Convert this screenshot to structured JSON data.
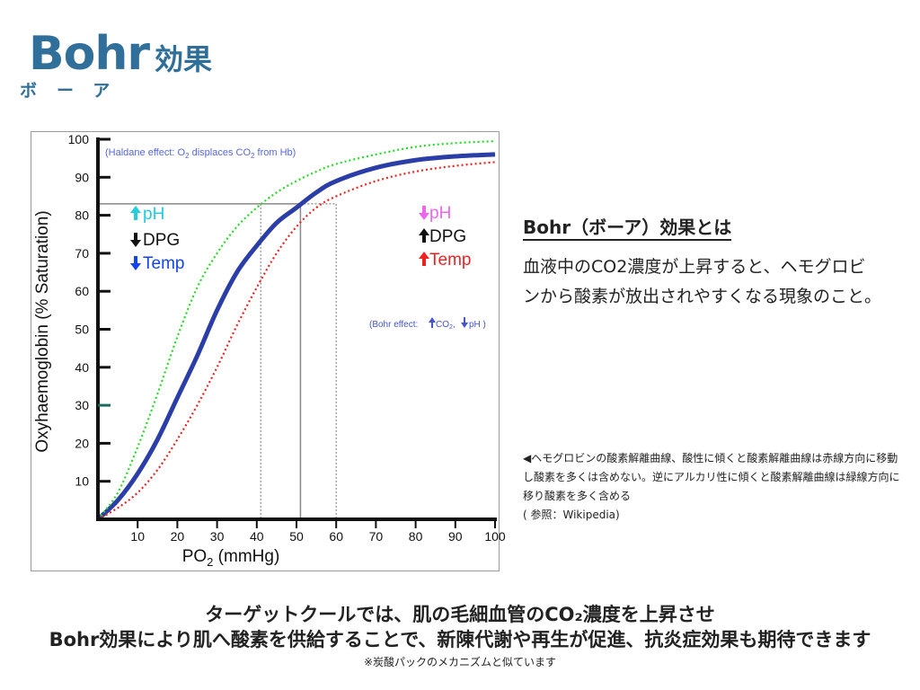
{
  "slide": {
    "title_en": "Bohr",
    "title_ja": "効果",
    "title_ruby": "ボーア"
  },
  "definition": {
    "heading": "Bohr（ボーア）効果とは",
    "body": "血液中のCO2濃度が上昇すると、ヘモグロビンから酸素が放出されやすくなる現象のこと。"
  },
  "caption": {
    "text": "◀ヘモグロビンの酸素解離曲線、酸性に傾くと酸素解離曲線は赤線方向に移動し酸素を多くは含めない。逆にアルカリ性に傾くと酸素解離曲線は緑線方向に移り酸素を多く含める",
    "source": "( 参照：Wikipedia)"
  },
  "bottom": {
    "line1": "ターゲットクールでは、肌の毛細血管のCO₂濃度を上昇させ",
    "line2": "Bohr効果により肌へ酸素を供給することで、新陳代謝や再生が促進、抗炎症効果も期待できます",
    "note": "※炭酸パックのメカニズムと似ています"
  },
  "chart_data": {
    "type": "line",
    "xlabel_main": "PO",
    "xlabel_sub": "2",
    "xlabel_unit": " (mmHg)",
    "ylabel": "Oxyhaemoglobin (% Saturation)",
    "xlim": [
      0,
      100
    ],
    "ylim": [
      0,
      100
    ],
    "x_ticks": [
      "10",
      "20",
      "30",
      "40",
      "50",
      "60",
      "70",
      "80",
      "90",
      "100"
    ],
    "y_ticks": [
      "10",
      "20",
      "30",
      "40",
      "50",
      "60",
      "70",
      "80",
      "90",
      "100"
    ],
    "series": [
      {
        "color": "#2b3ea8",
        "style": "solid",
        "x": [
          0,
          5,
          10,
          15,
          20,
          25,
          30,
          35,
          40,
          45,
          50,
          55,
          60,
          70,
          80,
          90,
          100
        ],
        "y": [
          0,
          5,
          12,
          21,
          32,
          43,
          55,
          65,
          72,
          78,
          82,
          86,
          89,
          92.5,
          94.5,
          95.5,
          96
        ]
      },
      {
        "color": "#22dd22",
        "style": "dotted",
        "x": [
          0,
          5,
          10,
          15,
          20,
          25,
          30,
          35,
          40,
          45,
          50,
          55,
          60,
          70,
          80,
          90,
          100
        ],
        "y": [
          0,
          7,
          19,
          33,
          48,
          61,
          70,
          77,
          82,
          86,
          89,
          91.5,
          93.5,
          96,
          98,
          99,
          99.5
        ]
      },
      {
        "color": "#ee2222",
        "style": "dotted",
        "x": [
          0,
          5,
          10,
          15,
          20,
          25,
          30,
          35,
          40,
          45,
          50,
          55,
          60,
          70,
          80,
          90,
          100
        ],
        "y": [
          0,
          3,
          7,
          13,
          21,
          30,
          40,
          51,
          61,
          70,
          77,
          82,
          85,
          89,
          91.5,
          93,
          94
        ]
      }
    ],
    "reference_lines": {
      "y": 83,
      "x_green": 41,
      "x_blue": 51,
      "x_red": 60
    },
    "annotations": {
      "haldane": {
        "pre": "(Haldane effect: O",
        "sub1": "2",
        "mid": " displaces CO",
        "sub2": "2",
        "post": " from Hb)"
      },
      "left": {
        "ph": {
          "arrow": "up",
          "label": "pH",
          "color": "#22ccdd"
        },
        "dpg": {
          "arrow": "down",
          "label": "DPG",
          "color": "#111111"
        },
        "temp": {
          "arrow": "down",
          "label": "Temp",
          "color": "#1144ee"
        }
      },
      "right": {
        "ph": {
          "arrow": "down",
          "label": "pH",
          "color": "#ee66ee"
        },
        "dpg": {
          "arrow": "up",
          "label": "DPG",
          "color": "#111111"
        },
        "temp": {
          "arrow": "up",
          "label": "Temp",
          "color": "#ee2222"
        }
      },
      "bohr": {
        "pre": "(Bohr effect:",
        "co2": " CO",
        "co2_sub": "2",
        "sep": ",",
        "ph": "pH )",
        "color": "#4455cc"
      }
    }
  }
}
